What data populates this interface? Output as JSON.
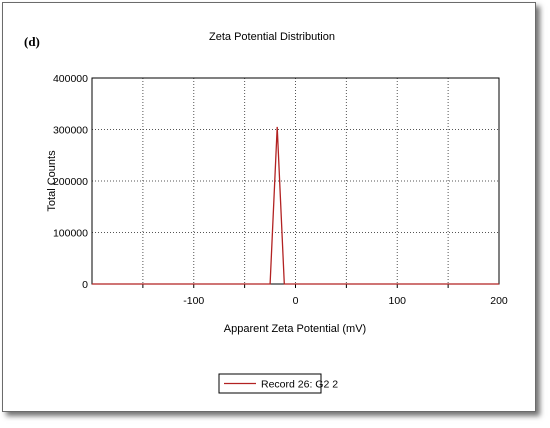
{
  "panel_tag": "(d)",
  "chart_data": {
    "type": "line",
    "title": "Zeta Potential Distribution",
    "xlabel": "Apparent Zeta Potential (mV)",
    "ylabel": "Total Counts",
    "xlim": [
      -200,
      200
    ],
    "ylim": [
      0,
      400000
    ],
    "xticks": [
      -100,
      0,
      100,
      200
    ],
    "xtick_labels": [
      "-100",
      "0",
      "100",
      "200"
    ],
    "yticks": [
      0,
      100000,
      200000,
      300000,
      400000
    ],
    "ytick_labels": [
      "0",
      "100000",
      "200000",
      "300000",
      "400000"
    ],
    "grid": true,
    "legend_position": "bottom",
    "series": [
      {
        "name": "Record 26: G2 2",
        "color": "#b22222",
        "x": [
          -200,
          -150,
          -100,
          -50,
          -25,
          -18,
          -11,
          -5,
          0,
          50,
          100,
          150,
          200
        ],
        "y": [
          0,
          0,
          0,
          0,
          0,
          305000,
          0,
          0,
          0,
          0,
          0,
          0,
          0
        ]
      }
    ]
  }
}
